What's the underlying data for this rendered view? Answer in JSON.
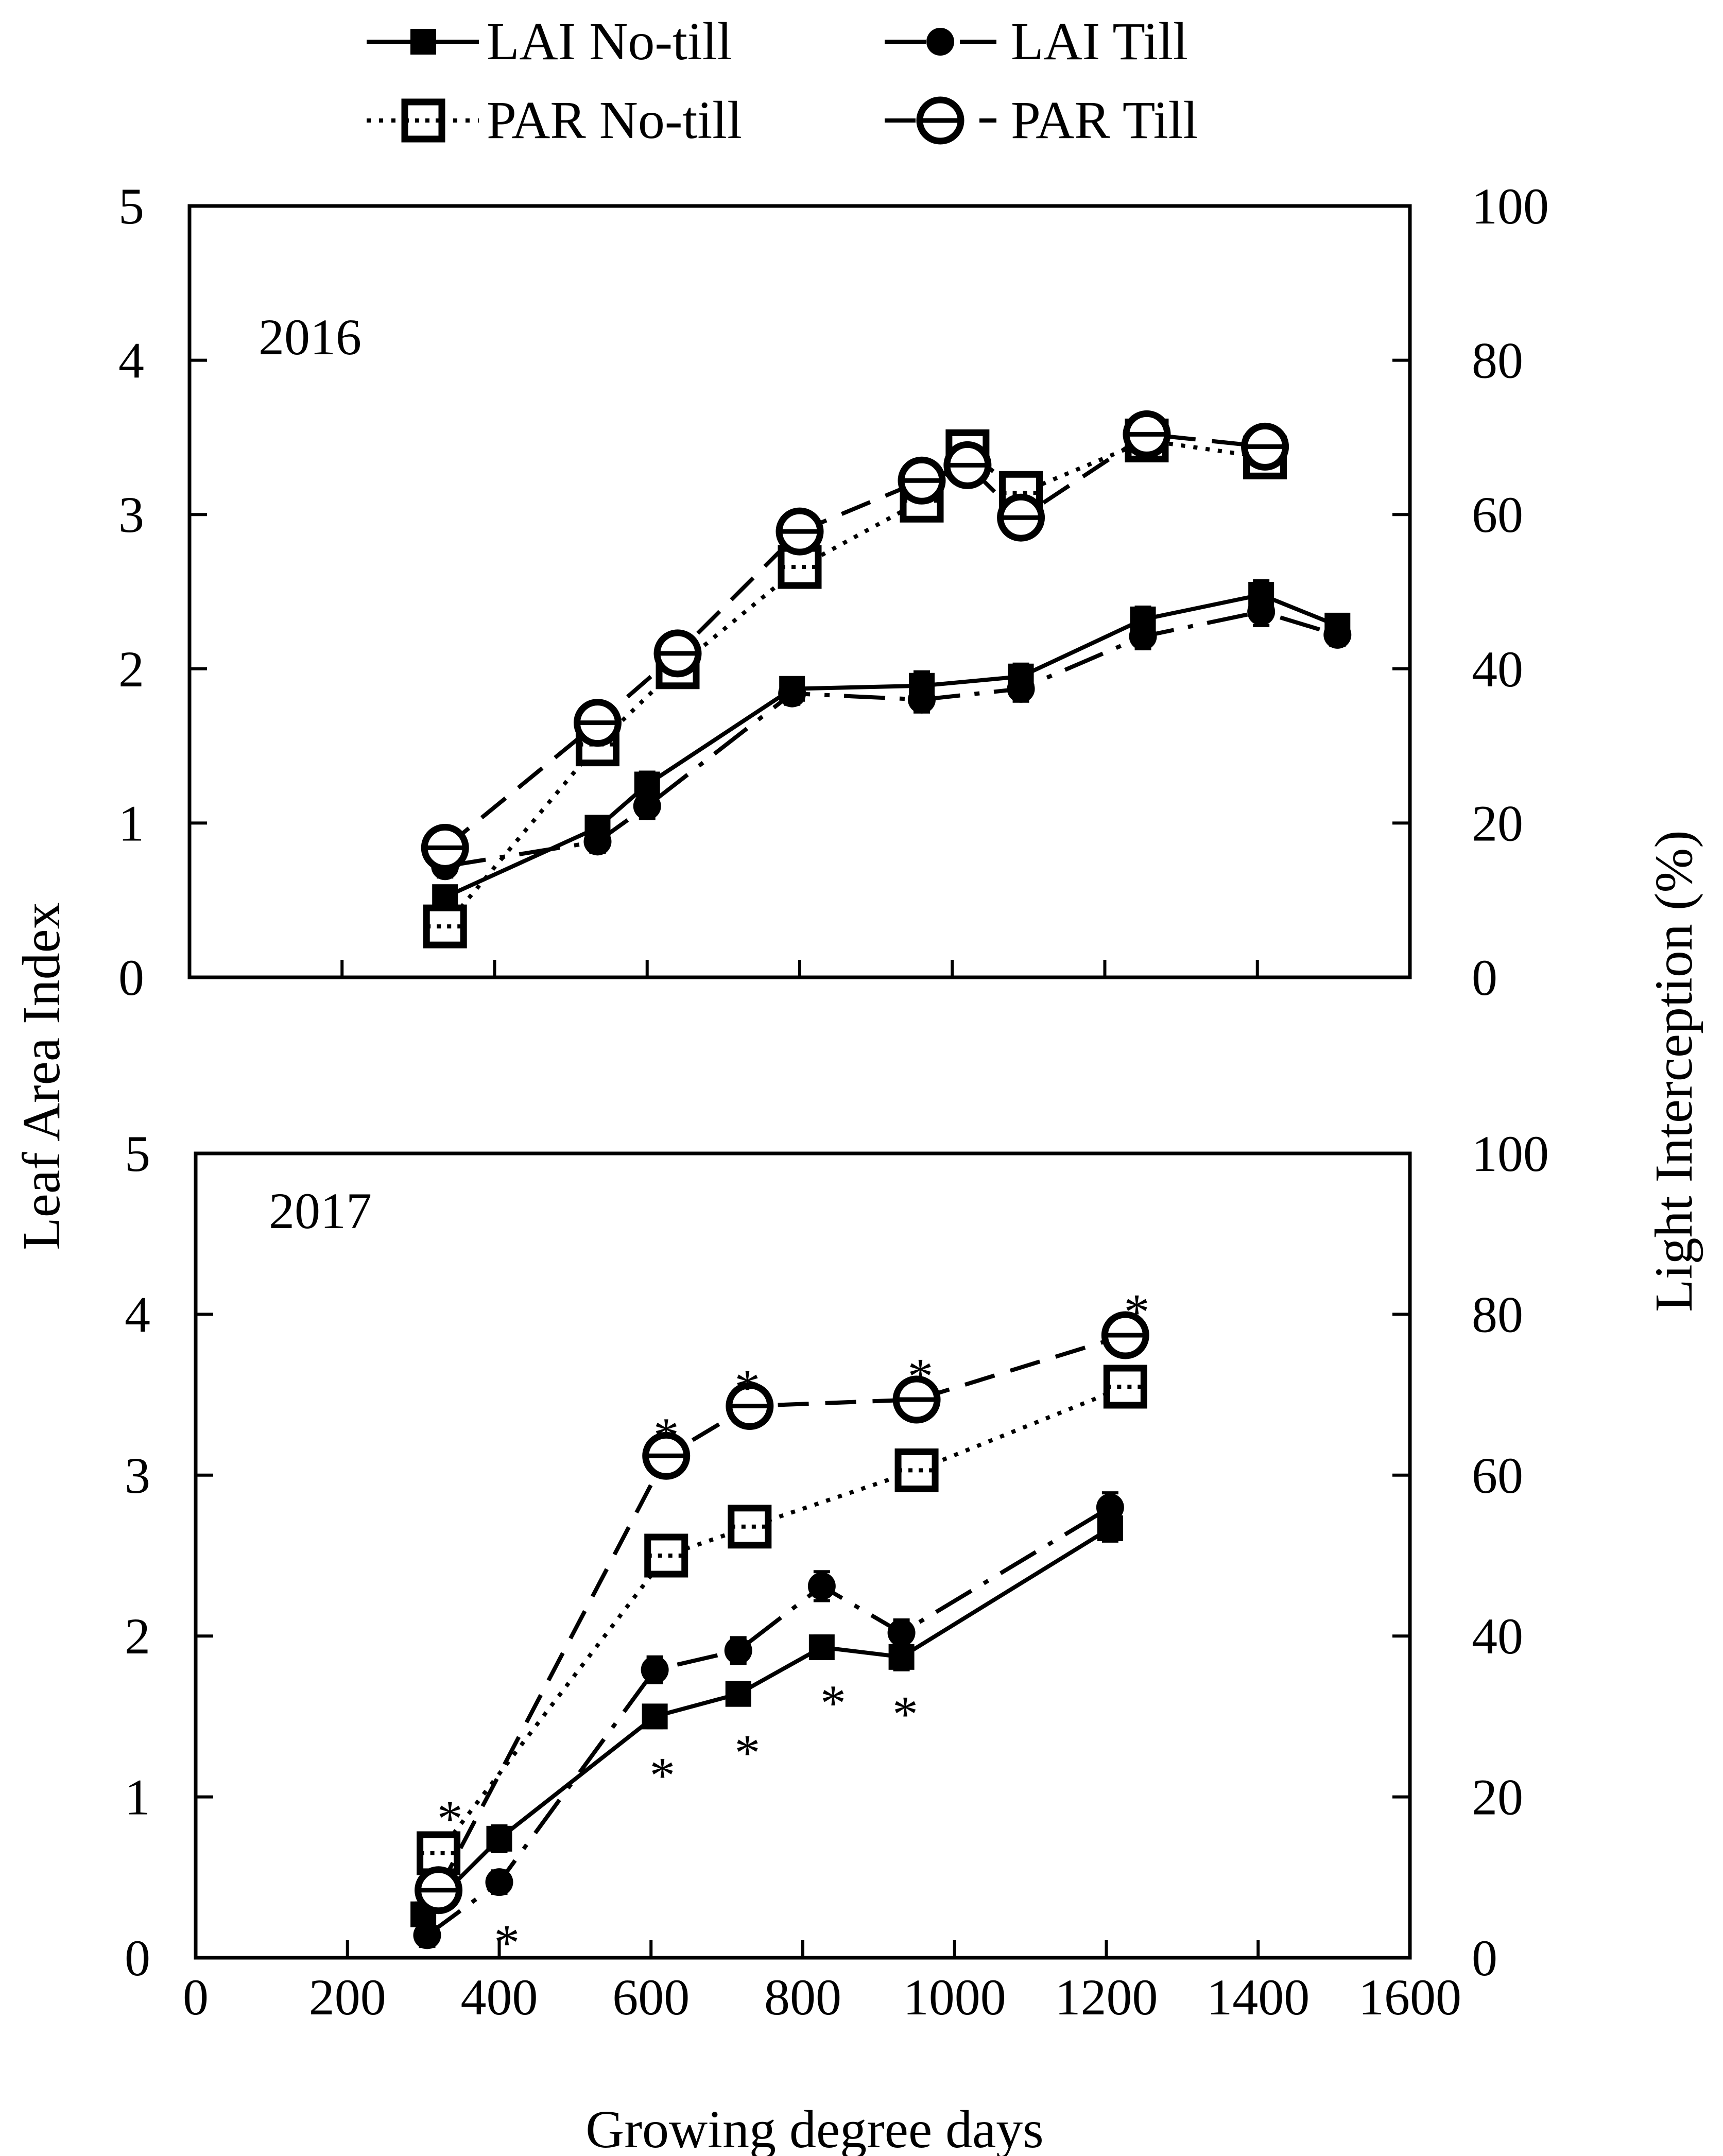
{
  "chart_data": [
    {
      "type": "line",
      "panel": "top",
      "year_label": "2016",
      "xlabel": "Growing degree days",
      "ylabel": "Leaf Area Index",
      "y2label": "Light Interception (%)",
      "xlim": [
        0,
        1600
      ],
      "ylim": [
        0,
        5
      ],
      "y2lim": [
        0,
        100
      ],
      "xticks": [
        0,
        200,
        400,
        600,
        800,
        1000,
        1200,
        1400,
        1600
      ],
      "yticks": [
        0,
        1,
        2,
        3,
        4,
        5
      ],
      "y2ticks": [
        0,
        20,
        40,
        60,
        80,
        100
      ],
      "grid": false,
      "series": [
        {
          "name": "LAI No-till",
          "axis": "left",
          "x": [
            335,
            535,
            600,
            790,
            960,
            1090,
            1250,
            1405,
            1505
          ],
          "y": [
            0.52,
            0.97,
            1.25,
            1.87,
            1.89,
            1.95,
            2.32,
            2.48,
            2.28
          ],
          "err": [
            0.07,
            0.07,
            0.08,
            0.07,
            0.09,
            0.08,
            0.08,
            0.09,
            0.07
          ]
        },
        {
          "name": "LAI Till",
          "axis": "left",
          "x": [
            335,
            535,
            600,
            790,
            960,
            1090,
            1250,
            1405,
            1505
          ],
          "y": [
            0.72,
            0.88,
            1.11,
            1.84,
            1.8,
            1.87,
            2.21,
            2.37,
            2.22
          ],
          "err": [
            0.07,
            0.07,
            0.08,
            0.07,
            0.08,
            0.08,
            0.08,
            0.09,
            0.07
          ]
        },
        {
          "name": "PAR No-till",
          "axis": "right",
          "x": [
            335,
            535,
            640,
            800,
            960,
            1020,
            1090,
            1255,
            1410
          ],
          "y": [
            6.6,
            30.2,
            40.2,
            53.2,
            61.8,
            68.2,
            62.8,
            69.6,
            67.4
          ],
          "err": [
            1.5,
            1.5,
            1.5,
            1.5,
            1.5,
            1.5,
            1.5,
            1.5,
            1.5
          ]
        },
        {
          "name": "PAR Till",
          "axis": "right",
          "x": [
            335,
            535,
            640,
            800,
            960,
            1020,
            1090,
            1255,
            1410
          ],
          "y": [
            16.8,
            33.0,
            42.0,
            57.8,
            64.4,
            66.4,
            59.6,
            70.4,
            68.8
          ],
          "err": [
            1.5,
            1.5,
            1.5,
            1.5,
            1.5,
            1.5,
            1.5,
            1.5,
            1.5
          ]
        }
      ],
      "annotations": []
    },
    {
      "type": "line",
      "panel": "bottom",
      "year_label": "2017",
      "xlabel": "Growing degree days",
      "ylabel": "Leaf Area Index",
      "y2label": "Light Interception (%)",
      "xlim": [
        0,
        1600
      ],
      "ylim": [
        0,
        5
      ],
      "y2lim": [
        0,
        100
      ],
      "xticks": [
        0,
        200,
        400,
        600,
        800,
        1000,
        1200,
        1400,
        1600
      ],
      "yticks": [
        0,
        1,
        2,
        3,
        4,
        5
      ],
      "y2ticks": [
        0,
        20,
        40,
        60,
        80,
        100
      ],
      "grid": false,
      "series": [
        {
          "name": "LAI No-till",
          "axis": "left",
          "x": [
            300,
            400,
            605,
            715,
            825,
            930,
            1205
          ],
          "y": [
            0.27,
            0.74,
            1.5,
            1.64,
            1.93,
            1.87,
            2.67
          ],
          "err": [
            0.07,
            0.08,
            0.07,
            0.07,
            0.07,
            0.08,
            0.08
          ]
        },
        {
          "name": "LAI Till",
          "axis": "left",
          "x": [
            305,
            400,
            605,
            715,
            825,
            930,
            1205
          ],
          "y": [
            0.14,
            0.47,
            1.79,
            1.91,
            2.31,
            2.02,
            2.8
          ],
          "err": [
            0.07,
            0.07,
            0.08,
            0.08,
            0.09,
            0.08,
            0.09
          ]
        },
        {
          "name": "PAR No-till",
          "axis": "right",
          "x": [
            320,
            620,
            730,
            950,
            1225
          ],
          "y": [
            13.0,
            50.0,
            53.6,
            60.6,
            71.0
          ],
          "err": [
            1.5,
            1.5,
            1.5,
            1.5,
            1.5
          ]
        },
        {
          "name": "PAR Till",
          "axis": "right",
          "x": [
            320,
            620,
            730,
            950,
            1225
          ],
          "y": [
            8.4,
            62.4,
            68.6,
            69.4,
            77.4
          ],
          "err": [
            1.5,
            1.5,
            1.5,
            1.5,
            1.5
          ]
        }
      ],
      "annotations": [
        {
          "text": "*",
          "x": 335,
          "y": 0.95
        },
        {
          "text": "*",
          "x": 410,
          "y": 0.18
        },
        {
          "text": "*",
          "x": 620,
          "y": 3.33
        },
        {
          "text": "*",
          "x": 615,
          "y": 1.22
        },
        {
          "text": "*",
          "x": 727,
          "y": 3.63
        },
        {
          "text": "*",
          "x": 727,
          "y": 1.36
        },
        {
          "text": "*",
          "x": 840,
          "y": 1.67
        },
        {
          "text": "*",
          "x": 935,
          "y": 1.6
        },
        {
          "text": "*",
          "x": 955,
          "y": 3.7
        },
        {
          "text": "*",
          "x": 1240,
          "y": 4.1
        }
      ]
    }
  ],
  "legend": {
    "placement": "top-center",
    "entries": [
      {
        "label": "LAI No-till",
        "series": "LAI No-till"
      },
      {
        "label": "LAI Till",
        "series": "LAI Till"
      },
      {
        "label": "PAR No-till",
        "series": "PAR No-till"
      },
      {
        "label": "PAR Till",
        "series": "PAR Till"
      }
    ]
  },
  "colors": {
    "ink": "#000000",
    "background": "#ffffff"
  }
}
